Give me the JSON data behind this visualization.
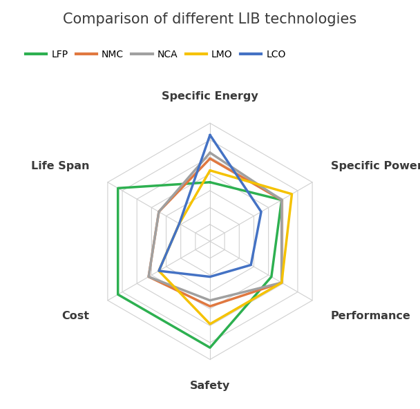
{
  "title": "Comparison of different LIB technologies",
  "categories": [
    "Specific Energy",
    "Specific Power",
    "Performance",
    "Safety",
    "Cost",
    "Life Span"
  ],
  "series": [
    {
      "name": "LFP",
      "color": "#2db050",
      "linewidth": 2.5,
      "values": [
        5,
        7,
        6,
        9,
        9,
        9
      ]
    },
    {
      "name": "NMC",
      "color": "#e07840",
      "linewidth": 2.5,
      "values": [
        7,
        7,
        7,
        5.5,
        6,
        5
      ]
    },
    {
      "name": "NCA",
      "color": "#a0a0a0",
      "linewidth": 2.5,
      "values": [
        7.5,
        7,
        7,
        5,
        6,
        5
      ]
    },
    {
      "name": "LMO",
      "color": "#f5c200",
      "linewidth": 2.5,
      "values": [
        6,
        8,
        7,
        7,
        5,
        3
      ]
    },
    {
      "name": "LCO",
      "color": "#4472c4",
      "linewidth": 2.5,
      "values": [
        9,
        5,
        4,
        3,
        5,
        3
      ]
    }
  ],
  "num_levels": 7,
  "max_value": 10,
  "background_color": "#ffffff",
  "grid_color": "#d0d0d0",
  "label_fontsize": 11.5,
  "title_fontsize": 15,
  "legend_fontsize": 10
}
